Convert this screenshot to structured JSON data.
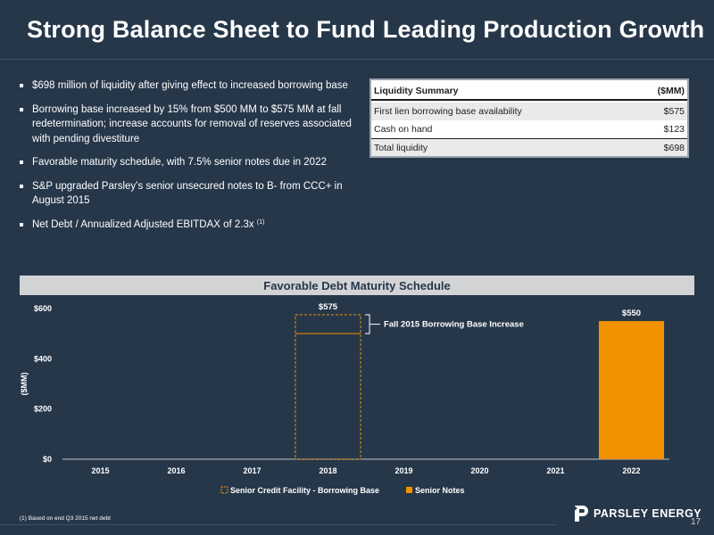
{
  "title": "Strong Balance Sheet to Fund Leading Production Growth",
  "bullets": [
    {
      "text": "$698 million of liquidity after giving effect to increased borrowing base"
    },
    {
      "text": "Borrowing base increased by 15% from $500 MM to $575 MM at fall redetermination; increase accounts for removal of reserves associated with pending divestiture"
    },
    {
      "text": "Favorable maturity schedule, with 7.5% senior notes due in 2022"
    },
    {
      "text": "S&P upgraded Parsley’s senior unsecured notes to B- from CCC+ in August 2015"
    },
    {
      "text": "Net Debt / Annualized Adjusted EBITDAX of 2.3x",
      "footnote_ref": "(1)"
    }
  ],
  "liquidity_table": {
    "header_label": "Liquidity Summary",
    "header_unit": "($MM)",
    "rows": [
      {
        "label": "First lien borrowing base availability",
        "value": "$575"
      },
      {
        "label": "Cash on hand",
        "value": "$123"
      }
    ],
    "total": {
      "label": "Total liquidity",
      "value": "$698"
    }
  },
  "chart_banner": "Favorable Debt Maturity Schedule",
  "chart_data": {
    "type": "bar",
    "categories": [
      "2015",
      "2016",
      "2017",
      "2018",
      "2019",
      "2020",
      "2021",
      "2022"
    ],
    "series": [
      {
        "name": "Senior Credit Facility - Borrowing Base",
        "values": [
          0,
          0,
          0,
          575,
          0,
          0,
          0,
          0
        ],
        "style": "dashed-outline",
        "color": "#f39200"
      },
      {
        "name": "Senior Notes",
        "values": [
          0,
          0,
          0,
          0,
          0,
          0,
          0,
          550
        ],
        "style": "solid",
        "color": "#f39200"
      }
    ],
    "prior_borrowing_base": 500,
    "data_labels": [
      {
        "category": "2018",
        "text": "$575"
      },
      {
        "category": "2022",
        "text": "$550"
      }
    ],
    "annotation": {
      "category": "2018",
      "text": "Fall 2015 Borrowing Base Increase"
    },
    "ylabel": "($MM)",
    "ylim": [
      0,
      600
    ],
    "yticks": [
      "$0",
      "$200",
      "$400",
      "$600"
    ],
    "ytick_values": [
      0,
      200,
      400,
      600
    ],
    "legend_position": "bottom-center"
  },
  "footnote": "(1) Based on end Q3 2015 net debt",
  "logo_text": "PARSLEY ENERGY",
  "page_number": "17",
  "colors": {
    "background": "#26374a",
    "accent": "#f39200",
    "banner": "#d2d3d5"
  }
}
